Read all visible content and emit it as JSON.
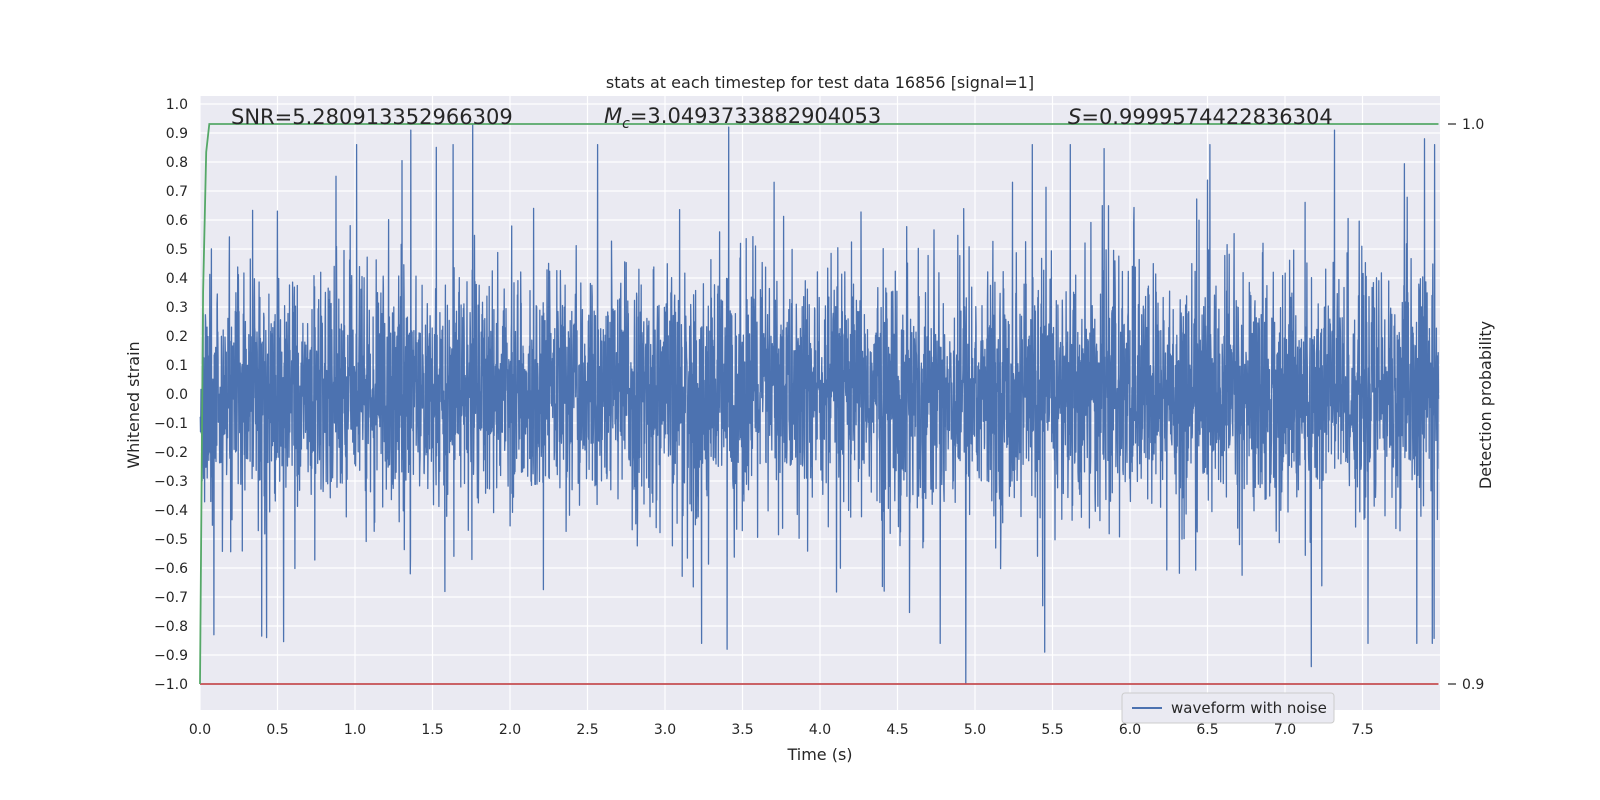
{
  "chart_data": {
    "type": "line",
    "title": "stats at each timestep for test data 16856 [signal=1]",
    "xlabel": "Time (s)",
    "ylabel": "Whitened strain",
    "y2label": "Detection probability",
    "xlim": [
      0.0,
      8.0
    ],
    "ylim": [
      -1.09,
      1.05
    ],
    "y2lim": [
      0.9,
      1.0
    ],
    "x_ticks": [
      0.0,
      0.5,
      1.0,
      1.5,
      2.0,
      2.5,
      3.0,
      3.5,
      4.0,
      4.5,
      5.0,
      5.5,
      6.0,
      6.5,
      7.0,
      7.5
    ],
    "x_tick_labels": [
      "0.0",
      "0.5",
      "1.0",
      "1.5",
      "2.0",
      "2.5",
      "3.0",
      "3.5",
      "4.0",
      "4.5",
      "5.0",
      "5.5",
      "6.0",
      "6.5",
      "7.0",
      "7.5"
    ],
    "y_ticks": [
      1.0,
      0.9,
      0.8,
      0.7,
      0.6,
      0.5,
      0.4,
      0.3,
      0.2,
      0.1,
      0.0,
      -0.1,
      -0.2,
      -0.3,
      -0.4,
      -0.5,
      -0.6,
      -0.7,
      -0.8,
      -0.9,
      -1.0
    ],
    "y_tick_labels": [
      "1.0",
      "0.9",
      "0.8",
      "0.7",
      "0.6",
      "0.5",
      "0.4",
      "0.3",
      "0.2",
      "0.1",
      "0.0",
      "−0.1",
      "−0.2",
      "−0.3",
      "−0.4",
      "−0.5",
      "−0.6",
      "−0.7",
      "−0.8",
      "−0.9",
      "−1.0"
    ],
    "y2_ticks": [
      1.0,
      0.9
    ],
    "y2_tick_labels": [
      "1.0",
      "0.9"
    ],
    "grid": true,
    "legend_position": "lower-right",
    "annotations": {
      "snr": "SNR=5.280913352966309",
      "mc_symbol": "M",
      "mc_sub": "c",
      "mc_value": "=3.0493733882904053",
      "s_symbol": "S",
      "s_value": "=0.9999574422836304"
    },
    "series": [
      {
        "name": "waveform with noise",
        "color": "#4c72b0",
        "description_points": {
          "x_range": [
            0.0,
            7.99
          ],
          "typical_amplitude": 0.45,
          "peaks": [
            [
              1.36,
              0.91
            ],
            [
              1.76,
              0.93
            ],
            [
              3.41,
              0.92
            ],
            [
              7.32,
              0.91
            ],
            [
              7.9,
              0.88
            ]
          ],
          "troughs": [
            [
              0.09,
              -0.83
            ],
            [
              0.43,
              -0.84
            ],
            [
              3.4,
              -0.88
            ],
            [
              4.94,
              -1.0
            ],
            [
              5.45,
              -0.89
            ],
            [
              7.17,
              -0.94
            ]
          ]
        }
      },
      {
        "name": "",
        "color": "#55a868",
        "x": [
          0.0,
          0.02,
          0.04,
          0.06,
          7.99
        ],
        "y2": [
          0.9,
          0.97,
          0.995,
          1.0,
          1.0
        ]
      },
      {
        "name": "",
        "color": "#c44e52",
        "x": [
          0.0,
          7.99
        ],
        "y2": [
          0.9,
          0.9
        ]
      }
    ],
    "colors": {
      "plot_bg": "#eaeaf2",
      "grid": "#ffffff",
      "waveform": "#4c72b0",
      "probability": "#55a868",
      "threshold": "#c44e52"
    }
  }
}
